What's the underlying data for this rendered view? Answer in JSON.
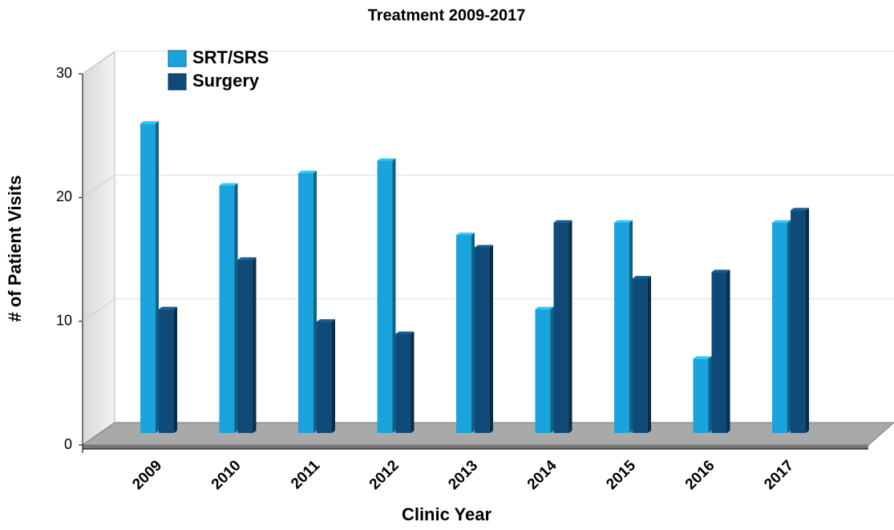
{
  "chart_data": {
    "type": "bar",
    "title": "Treatment 2009-2017",
    "x_label": "Clinic Year",
    "y_label": "# of Patient Visits",
    "categories": [
      "2009",
      "2010",
      "2011",
      "2012",
      "2013",
      "2014",
      "2015",
      "2016",
      "2017"
    ],
    "series": [
      {
        "name": "SRT/SRS",
        "color": "#1ba3dd",
        "values": [
          25,
          20,
          21,
          22,
          16,
          10,
          17,
          6,
          17
        ]
      },
      {
        "name": "Surgery",
        "color": "#0f4a78",
        "values": [
          10,
          14,
          9,
          8,
          15,
          17,
          12.5,
          13,
          18
        ]
      }
    ],
    "ylim": [
      0,
      30
    ],
    "yticks": [
      0,
      10,
      20,
      30
    ],
    "grid": true,
    "legend": "upper left"
  }
}
